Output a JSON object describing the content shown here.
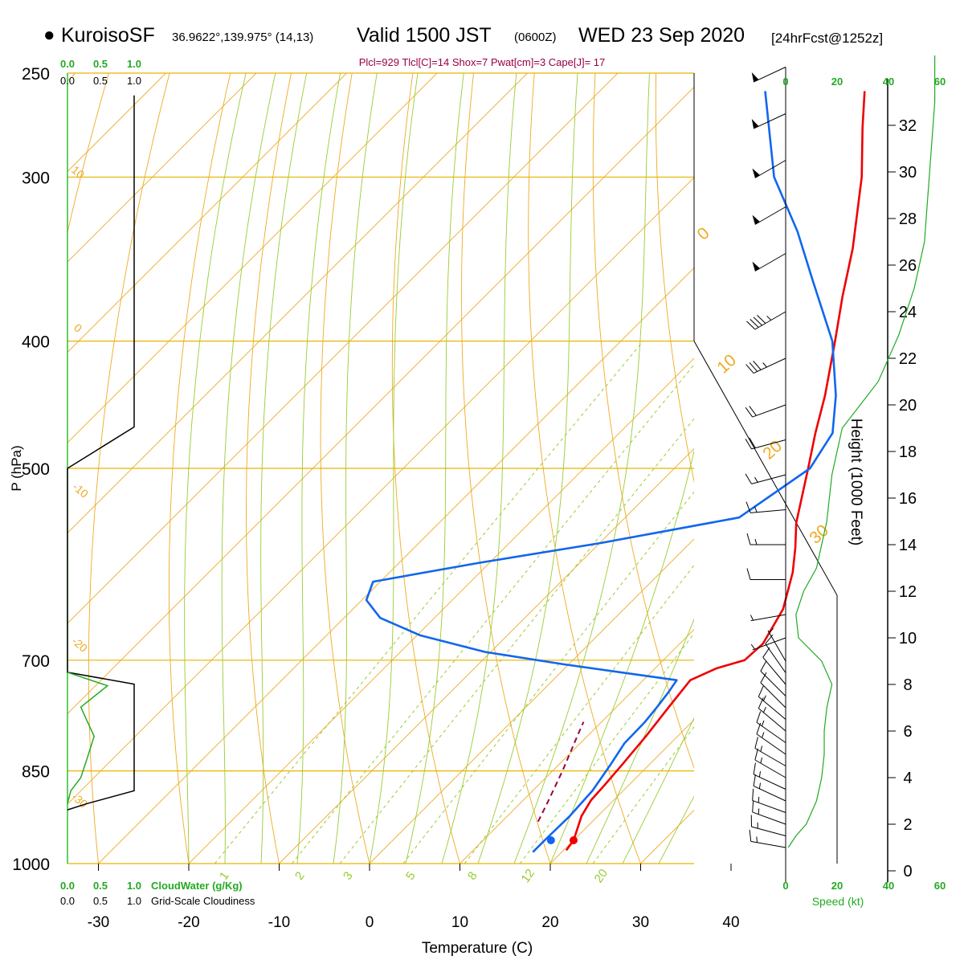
{
  "header": {
    "model": "KuroisoSF",
    "coords": "36.9622°,139.975° (14,13)",
    "valid": "Valid 1500 JST",
    "utc": "(0600Z)",
    "date": "WED 23 Sep 2020",
    "forecast": "[24hrFcst@1252z]",
    "params": "Plcl=929 Tlcl[C]=14 Shox=7 Pwat[cm]=3 Cape[J]= 17"
  },
  "left_panel": {
    "cloudwater_ticks": [
      "0.0",
      "0.5",
      "1.0"
    ],
    "cloudiness_ticks": [
      "0.0",
      "0.5",
      "1.0"
    ],
    "cloudwater_label": "CloudWater (g/Kg)",
    "cloudiness_label": "Grid-Scale Cloudiness"
  },
  "right_panel": {
    "speed_ticks": [
      "0",
      "20",
      "40",
      "60"
    ],
    "speed_label": "Speed (kt)",
    "height_label": "Height (1000 Feet)",
    "height_ticks": [
      "0",
      "2",
      "4",
      "6",
      "8",
      "10",
      "12",
      "14",
      "16",
      "18",
      "20",
      "22",
      "24",
      "26",
      "28",
      "30",
      "32"
    ]
  },
  "colors": {
    "temperature": "#ee0000",
    "dewpoint": "#1166ee",
    "isobar": "#ddaa00",
    "isotherm": "#eeaa22",
    "dry_adiabat": "#eeaa22",
    "moist_adiabat": "#99cc33",
    "mixing_ratio": "#99cc33",
    "cloudwater": "#22aa22",
    "cloudiness": "#000000",
    "parcel": "#990044"
  },
  "chart_data": {
    "type": "skew-t log-p",
    "xlabel": "Temperature (C)",
    "ylabel": "P (hPa)",
    "x_ticks": [
      "-30",
      "-20",
      "-10",
      "0",
      "10",
      "20",
      "30",
      "40"
    ],
    "pressure_levels": [
      250,
      300,
      400,
      500,
      700,
      850,
      1000
    ],
    "pressure_labels": [
      "250",
      "300",
      "400",
      "500",
      "700",
      "850",
      "1000"
    ],
    "isotherm_labels": [
      "0",
      "10",
      "20",
      "30"
    ],
    "dry_adiabat_labels": [
      "10",
      "0",
      "-10",
      "-20",
      "-30"
    ],
    "moist_adiabat_labels": [
      "1",
      "2",
      "3",
      "5",
      "8",
      "12",
      "20"
    ],
    "temperature": [
      {
        "p": 977,
        "t": 20.3
      },
      {
        "p": 960,
        "t": 20.0
      },
      {
        "p": 920,
        "t": 18.2
      },
      {
        "p": 895,
        "t": 17.5
      },
      {
        "p": 870,
        "t": 17.3
      },
      {
        "p": 840,
        "t": 17.0
      },
      {
        "p": 800,
        "t": 16.5
      },
      {
        "p": 760,
        "t": 15.8
      },
      {
        "p": 725,
        "t": 15.2
      },
      {
        "p": 710,
        "t": 16.8
      },
      {
        "p": 700,
        "t": 19.0
      },
      {
        "p": 680,
        "t": 19.2
      },
      {
        "p": 640,
        "t": 17.6
      },
      {
        "p": 600,
        "t": 14.6
      },
      {
        "p": 575,
        "t": 12.2
      },
      {
        "p": 550,
        "t": 9.5
      },
      {
        "p": 500,
        "t": 4.8
      },
      {
        "p": 470,
        "t": 1.7
      },
      {
        "p": 440,
        "t": -1.4
      },
      {
        "p": 400,
        "t": -6.3
      },
      {
        "p": 370,
        "t": -10.4
      },
      {
        "p": 340,
        "t": -14.6
      },
      {
        "p": 300,
        "t": -21.5
      },
      {
        "p": 275,
        "t": -26.9
      },
      {
        "p": 258,
        "t": -30.7
      }
    ],
    "dewpoint": [
      {
        "p": 980,
        "t": 16.8
      },
      {
        "p": 960,
        "t": 16.8
      },
      {
        "p": 920,
        "t": 16.9
      },
      {
        "p": 880,
        "t": 16.6
      },
      {
        "p": 840,
        "t": 15.7
      },
      {
        "p": 810,
        "t": 14.9
      },
      {
        "p": 780,
        "t": 14.8
      },
      {
        "p": 760,
        "t": 14.5
      },
      {
        "p": 740,
        "t": 14.1
      },
      {
        "p": 725,
        "t": 13.7
      },
      {
        "p": 705,
        "t": -0.6
      },
      {
        "p": 690,
        "t": -10.6
      },
      {
        "p": 670,
        "t": -19.7
      },
      {
        "p": 650,
        "t": -26.0
      },
      {
        "p": 630,
        "t": -29.5
      },
      {
        "p": 610,
        "t": -30.8
      },
      {
        "p": 590,
        "t": -21.1
      },
      {
        "p": 570,
        "t": -9.9
      },
      {
        "p": 545,
        "t": 2.6
      },
      {
        "p": 500,
        "t": 5.0
      },
      {
        "p": 470,
        "t": 3.6
      },
      {
        "p": 440,
        "t": -0.2
      },
      {
        "p": 400,
        "t": -6.6
      },
      {
        "p": 360,
        "t": -15.4
      },
      {
        "p": 330,
        "t": -22.6
      },
      {
        "p": 300,
        "t": -31.2
      },
      {
        "p": 258,
        "t": -41.7
      }
    ],
    "parcel_path": [
      {
        "p": 929,
        "t": 14.0
      },
      {
        "p": 900,
        "t": 13.0
      },
      {
        "p": 850,
        "t": 11.1
      },
      {
        "p": 800,
        "t": 8.9
      },
      {
        "p": 780,
        "t": 8.0
      }
    ],
    "surface_temperature": 20.0,
    "surface_dewpoint": 17.5,
    "wind_barbs": [
      {
        "h_kft": 1.0,
        "dir": 280,
        "spd": 15
      },
      {
        "h_kft": 1.5,
        "dir": 285,
        "spd": 15
      },
      {
        "h_kft": 2.0,
        "dir": 290,
        "spd": 15
      },
      {
        "h_kft": 2.5,
        "dir": 290,
        "spd": 15
      },
      {
        "h_kft": 3.0,
        "dir": 295,
        "spd": 15
      },
      {
        "h_kft": 3.5,
        "dir": 295,
        "spd": 15
      },
      {
        "h_kft": 4.0,
        "dir": 300,
        "spd": 15
      },
      {
        "h_kft": 4.5,
        "dir": 300,
        "spd": 15
      },
      {
        "h_kft": 5.0,
        "dir": 305,
        "spd": 15
      },
      {
        "h_kft": 5.5,
        "dir": 305,
        "spd": 15
      },
      {
        "h_kft": 6.0,
        "dir": 310,
        "spd": 15
      },
      {
        "h_kft": 6.5,
        "dir": 310,
        "spd": 15
      },
      {
        "h_kft": 7.0,
        "dir": 315,
        "spd": 10
      },
      {
        "h_kft": 7.5,
        "dir": 315,
        "spd": 10
      },
      {
        "h_kft": 8.0,
        "dir": 320,
        "spd": 10
      },
      {
        "h_kft": 8.5,
        "dir": 325,
        "spd": 10
      },
      {
        "h_kft": 9.0,
        "dir": 330,
        "spd": 5
      },
      {
        "h_kft": 10.0,
        "dir": 250,
        "spd": 5
      },
      {
        "h_kft": 11.0,
        "dir": 260,
        "spd": 5
      },
      {
        "h_kft": 12.5,
        "dir": 270,
        "spd": 10
      },
      {
        "h_kft": 14.0,
        "dir": 270,
        "spd": 15
      },
      {
        "h_kft": 15.5,
        "dir": 265,
        "spd": 15
      },
      {
        "h_kft": 17.0,
        "dir": 255,
        "spd": 15
      },
      {
        "h_kft": 18.5,
        "dir": 255,
        "spd": 20
      },
      {
        "h_kft": 20.0,
        "dir": 250,
        "spd": 20
      },
      {
        "h_kft": 22.0,
        "dir": 245,
        "spd": 35
      },
      {
        "h_kft": 24.0,
        "dir": 240,
        "spd": 45
      },
      {
        "h_kft": 26.5,
        "dir": 240,
        "spd": 50
      },
      {
        "h_kft": 28.5,
        "dir": 240,
        "spd": 50
      },
      {
        "h_kft": 30.5,
        "dir": 240,
        "spd": 50
      },
      {
        "h_kft": 32.5,
        "dir": 245,
        "spd": 50
      },
      {
        "h_kft": 34.5,
        "dir": 245,
        "spd": 50
      }
    ],
    "wind_speed_profile": [
      {
        "h_kft": 1.0,
        "spd": 1
      },
      {
        "h_kft": 1.5,
        "spd": 4
      },
      {
        "h_kft": 2.0,
        "spd": 8
      },
      {
        "h_kft": 3.0,
        "spd": 12
      },
      {
        "h_kft": 4.0,
        "spd": 14
      },
      {
        "h_kft": 5.0,
        "spd": 15
      },
      {
        "h_kft": 6.0,
        "spd": 15
      },
      {
        "h_kft": 7.0,
        "spd": 16
      },
      {
        "h_kft": 8.0,
        "spd": 18
      },
      {
        "h_kft": 9.0,
        "spd": 14
      },
      {
        "h_kft": 10.0,
        "spd": 5
      },
      {
        "h_kft": 11.0,
        "spd": 4
      },
      {
        "h_kft": 12.0,
        "spd": 7
      },
      {
        "h_kft": 13.0,
        "spd": 12
      },
      {
        "h_kft": 14.0,
        "spd": 14
      },
      {
        "h_kft": 15.0,
        "spd": 16
      },
      {
        "h_kft": 17.0,
        "spd": 18
      },
      {
        "h_kft": 19.0,
        "spd": 22
      },
      {
        "h_kft": 21.0,
        "spd": 36
      },
      {
        "h_kft": 23.0,
        "spd": 44
      },
      {
        "h_kft": 25.0,
        "spd": 50
      },
      {
        "h_kft": 27.0,
        "spd": 54
      },
      {
        "h_kft": 30.0,
        "spd": 56
      },
      {
        "h_kft": 33.0,
        "spd": 58
      },
      {
        "h_kft": 35.0,
        "spd": 58
      }
    ],
    "cloudiness_profile": [
      {
        "p": 260,
        "v": 1.0
      },
      {
        "p": 465,
        "v": 1.0
      },
      {
        "p": 500,
        "v": 0.0
      },
      {
        "p": 715,
        "v": 0.0
      },
      {
        "p": 730,
        "v": 1.0
      },
      {
        "p": 880,
        "v": 1.0
      },
      {
        "p": 900,
        "v": 0.3
      },
      {
        "p": 910,
        "v": 0.0
      }
    ],
    "cloudwater_profile": [
      {
        "p": 715,
        "v": 0.0
      },
      {
        "p": 732,
        "v": 0.6
      },
      {
        "p": 760,
        "v": 0.2
      },
      {
        "p": 780,
        "v": 0.3
      },
      {
        "p": 800,
        "v": 0.4
      },
      {
        "p": 830,
        "v": 0.3
      },
      {
        "p": 860,
        "v": 0.2
      },
      {
        "p": 880,
        "v": 0.05
      },
      {
        "p": 900,
        "v": 0.0
      }
    ]
  }
}
